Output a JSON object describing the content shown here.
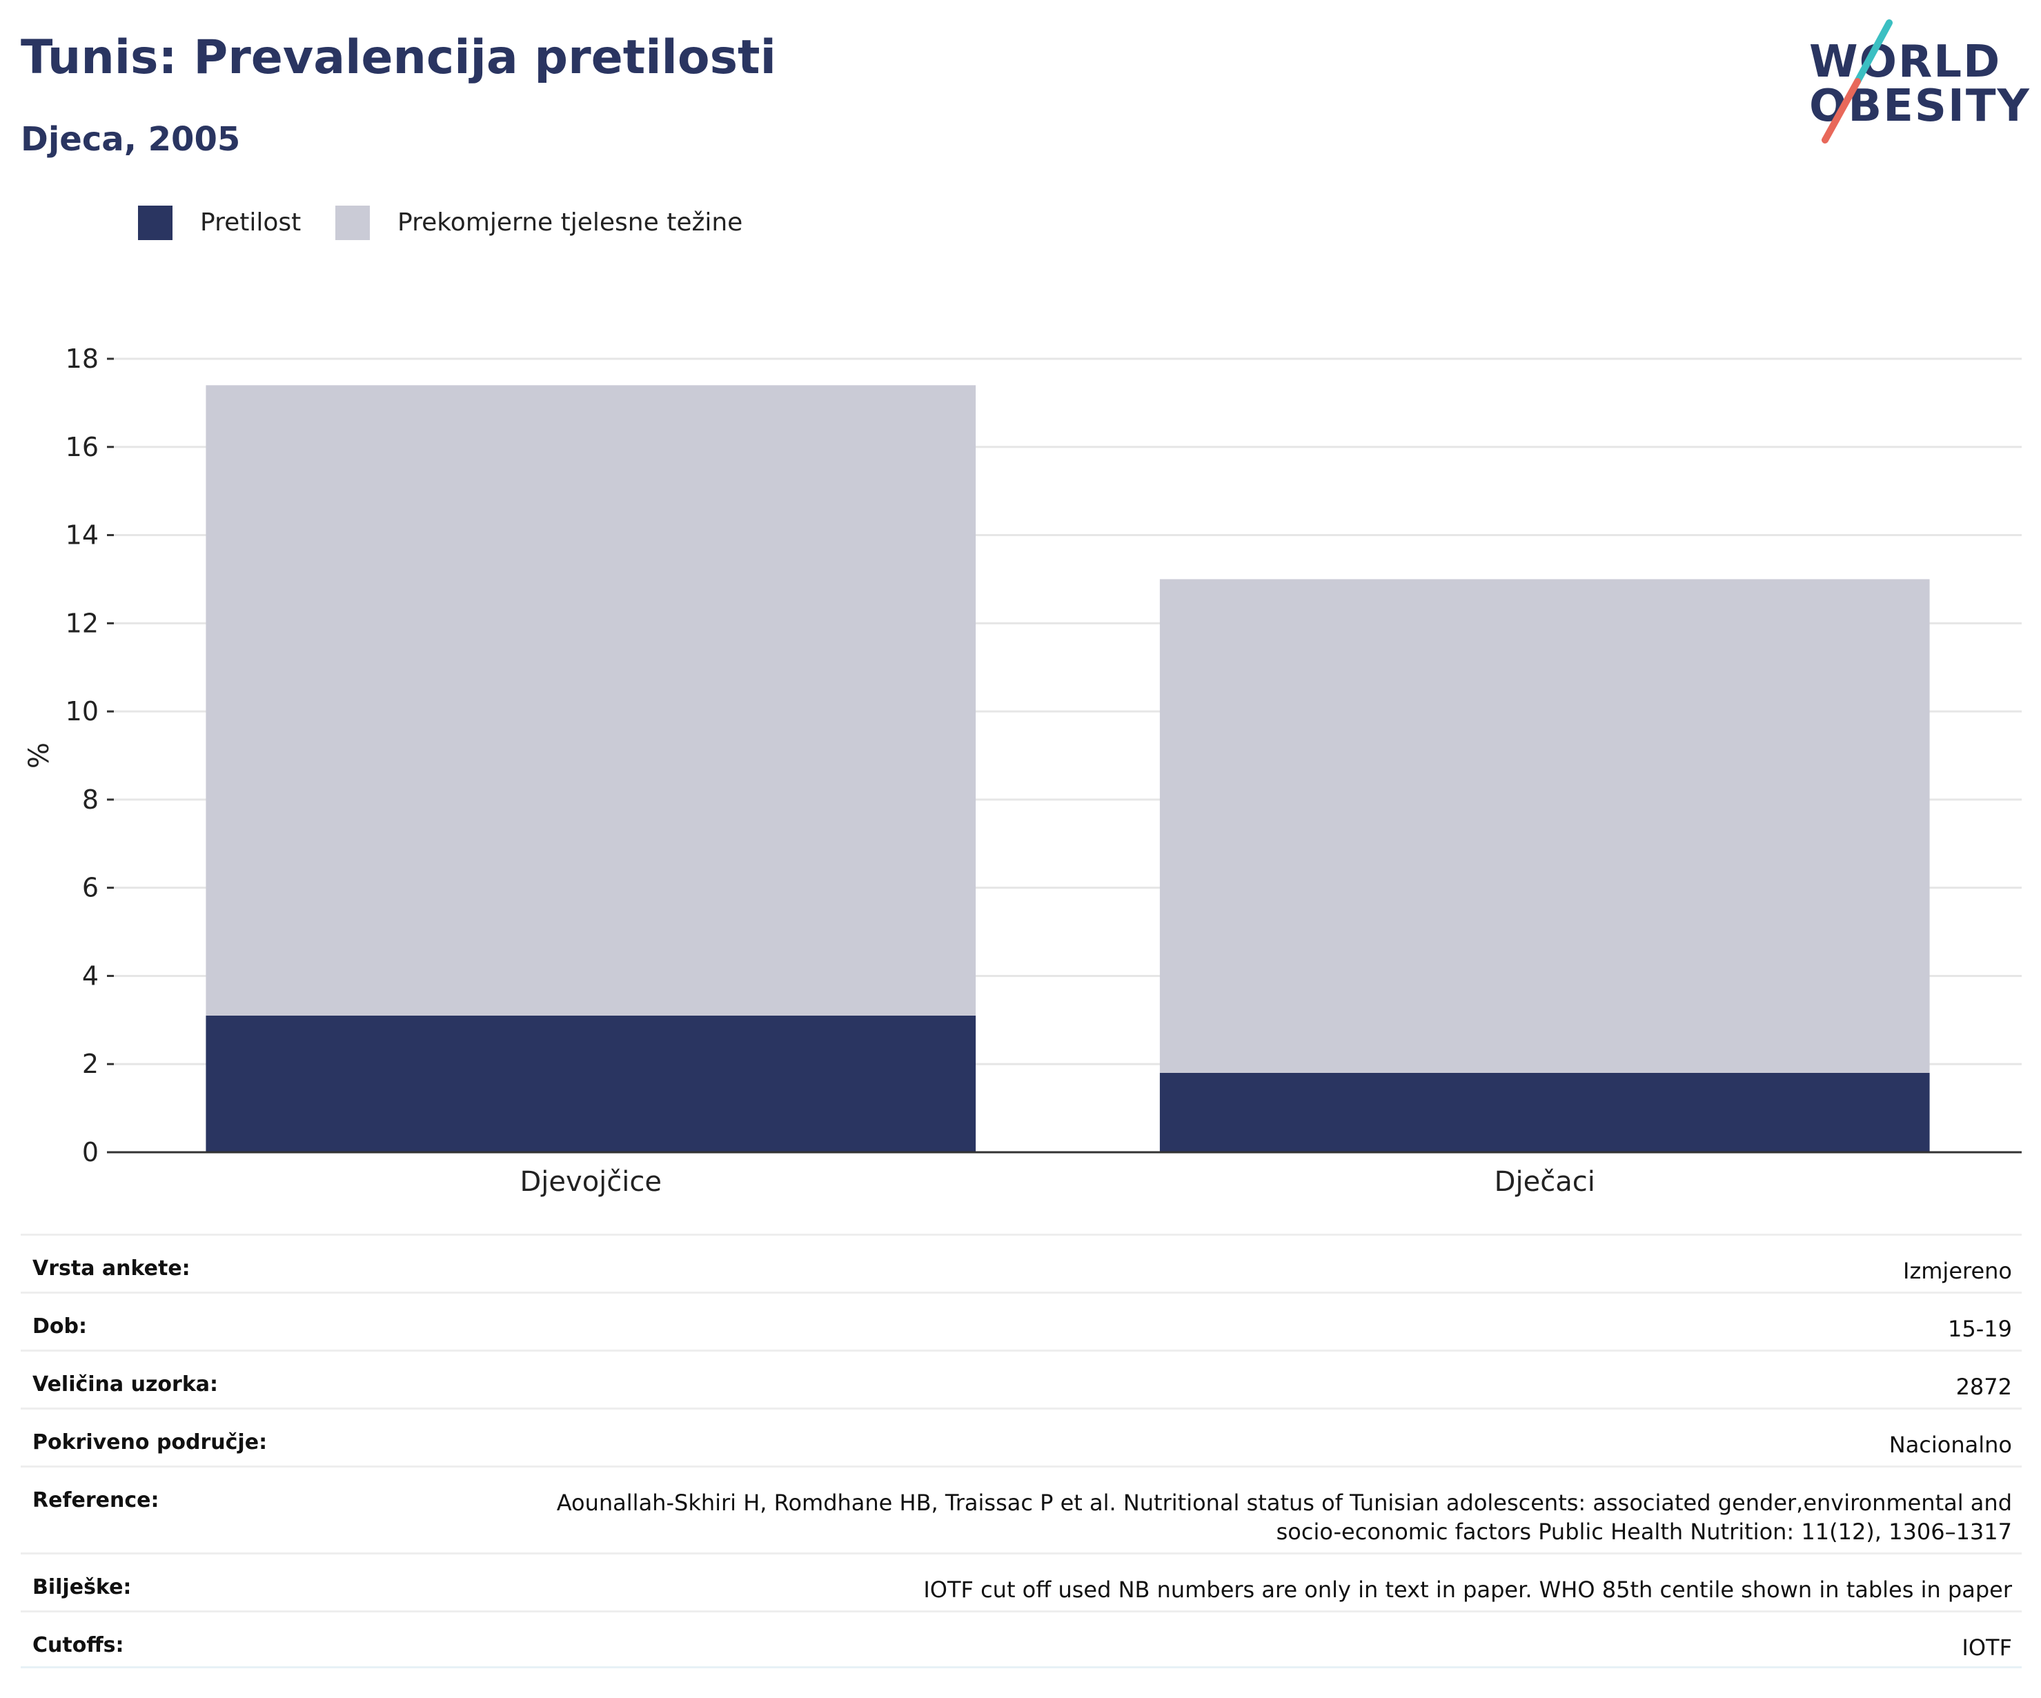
{
  "header": {
    "title": "Tunis: Prevalencija pretilosti",
    "subtitle": "Djeca, 2005"
  },
  "logo": {
    "line1": "WORLD",
    "line2": "OBESITY",
    "accent_teal": "#3bbfc2",
    "accent_red": "#e8685a"
  },
  "colors": {
    "obesity": "#2a3561",
    "overweight": "#cacbd6",
    "title": "#2a3561",
    "grid": "#e6e6e6",
    "axis": "#333333"
  },
  "legend": [
    {
      "label": "Pretilost",
      "color": "#2a3561"
    },
    {
      "label": "Prekomjerne tjelesne težine",
      "color": "#cacbd6"
    }
  ],
  "chart_data": {
    "type": "bar",
    "stacked": true,
    "title": "Tunis: Prevalencija pretilosti",
    "subtitle": "Djeca, 2005",
    "categories": [
      "Djevojčice",
      "Dječaci"
    ],
    "series": [
      {
        "name": "Pretilost",
        "values": [
          3.1,
          1.8
        ],
        "color": "#2a3561"
      },
      {
        "name": "Prekomjerne tjelesne težine",
        "values": [
          14.3,
          11.2
        ],
        "color": "#cacbd6"
      }
    ],
    "xlabel": "",
    "ylabel": "%",
    "ylim": [
      0,
      18
    ],
    "yticks": [
      0,
      2,
      4,
      6,
      8,
      10,
      12,
      14,
      16,
      18
    ],
    "grid": true,
    "legend_position": "top-left"
  },
  "info": [
    {
      "label": "Vrsta ankete:",
      "value": "Izmjereno"
    },
    {
      "label": "Dob:",
      "value": "15-19"
    },
    {
      "label": "Veličina uzorka:",
      "value": "2872"
    },
    {
      "label": "Pokriveno područje:",
      "value": "Nacionalno"
    },
    {
      "label": "Reference:",
      "value": "Aounallah-Skhiri H, Romdhane HB, Traissac P et al. Nutritional status of Tunisian adolescents: associated gender,environmental and socio-economic factors Public Health Nutrition: 11(12), 1306–1317"
    },
    {
      "label": "Bilješke:",
      "value": "IOTF cut off used NB numbers are only in text in paper. WHO 85th centile shown in tables in paper"
    },
    {
      "label": "Cutoffs:",
      "value": "IOTF"
    }
  ]
}
